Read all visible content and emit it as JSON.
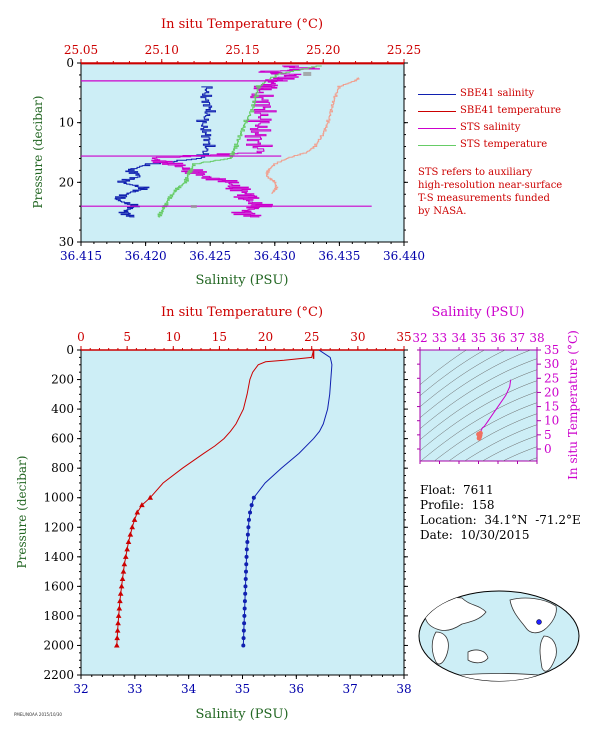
{
  "colors": {
    "panel_bg": "#cdeef6",
    "red": "#cc0000",
    "blue": "#1020b0",
    "magenta": "#cc00cc",
    "salmon": "#f0a090",
    "green": "#66cc66",
    "ylabel_green": "#226622",
    "tick_blue": "#0000aa"
  },
  "chart_data": [
    {
      "name": "top-profile",
      "type": "line",
      "title_top": "In situ Temperature (°C)",
      "xlabel": "Salinity (PSU)",
      "ylabel": "Pressure (decibar)",
      "x_salinity": {
        "range": [
          36.415,
          36.44
        ],
        "ticks": [
          "36.415",
          "36.420",
          "36.425",
          "36.430",
          "36.435",
          "36.440"
        ]
      },
      "x_temperature": {
        "range": [
          25.05,
          25.25
        ],
        "ticks": [
          "25.05",
          "25.10",
          "25.15",
          "25.20",
          "25.25"
        ]
      },
      "y": {
        "range": [
          0,
          30
        ],
        "ticks": [
          "0",
          "10",
          "20",
          "30"
        ],
        "inverted": true
      },
      "legend": [
        {
          "label": "SBE41 salinity",
          "color": "#1020b0"
        },
        {
          "label": "SBE41 temperature",
          "color": "#cc0000"
        },
        {
          "label": "STS salinity",
          "color": "#cc00cc"
        },
        {
          "label": "STS temperature",
          "color": "#66cc66"
        }
      ],
      "note": "STS refers to auxiliary\nhigh-resolution near-surface\nT-S measurements funded\nby NASA.",
      "series": [
        {
          "name": "SBE41 salinity",
          "color": "#1020b0",
          "p": [
            4,
            6,
            8,
            10,
            12,
            14,
            16,
            17,
            18,
            19,
            20,
            21,
            22,
            23,
            24,
            25,
            26
          ],
          "s": [
            36.4248,
            36.4246,
            36.425,
            36.4244,
            36.4247,
            36.4249,
            36.4243,
            36.4203,
            36.4187,
            36.4196,
            36.418,
            36.42,
            36.4185,
            36.4178,
            36.4192,
            36.4183,
            36.419
          ]
        },
        {
          "name": "STS salinity",
          "color": "#cc00cc",
          "p": [
            0.5,
            1,
            1.5,
            2,
            3,
            4,
            5,
            7,
            9,
            11,
            13,
            15,
            16,
            17,
            18,
            19,
            20,
            21,
            22,
            23,
            24,
            25,
            26
          ],
          "s": [
            36.4305,
            36.433,
            36.429,
            36.4315,
            36.43,
            36.4295,
            36.4287,
            36.4292,
            36.429,
            36.4288,
            36.4285,
            36.429,
            36.4205,
            36.422,
            36.4235,
            36.4245,
            36.4265,
            36.427,
            36.428,
            36.4278,
            36.429,
            36.4275,
            36.4285
          ]
        },
        {
          "name": "STS temperature",
          "color": "#66cc66",
          "p": [
            0.5,
            2,
            4,
            6,
            8,
            10,
            12,
            14,
            15,
            16,
            17,
            18,
            19,
            20,
            21,
            22,
            23,
            24,
            25,
            26
          ],
          "t": [
            25.199,
            25.172,
            25.16,
            25.158,
            25.156,
            25.152,
            25.149,
            25.146,
            25.144,
            25.143,
            25.12,
            25.118,
            25.116,
            25.115,
            25.11,
            25.107,
            25.104,
            25.102,
            25.1,
            25.098
          ]
        },
        {
          "name": "SBE41 temperature",
          "color": "#f0a090",
          "p": [
            2.5,
            3,
            4,
            6,
            8,
            10,
            12,
            14,
            15,
            16,
            17,
            18,
            19,
            20,
            21,
            22
          ],
          "t": [
            25.222,
            25.22,
            25.21,
            25.207,
            25.205,
            25.203,
            25.2,
            25.195,
            25.19,
            25.178,
            25.17,
            25.166,
            25.165,
            25.17,
            25.171,
            25.168
          ]
        }
      ]
    },
    {
      "name": "main-profile",
      "type": "line",
      "title_top": "In situ Temperature (°C)",
      "xlabel": "Salinity (PSU)",
      "ylabel": "Pressure (decibar)",
      "x_salinity": {
        "range": [
          32,
          38
        ],
        "ticks": [
          "32",
          "33",
          "34",
          "35",
          "36",
          "37",
          "38"
        ]
      },
      "x_temperature": {
        "range": [
          0,
          35
        ],
        "ticks": [
          "0",
          "5",
          "10",
          "15",
          "20",
          "25",
          "30",
          "35"
        ]
      },
      "y": {
        "range": [
          0,
          2200
        ],
        "ticks": [
          "0",
          "200",
          "400",
          "600",
          "800",
          "1000",
          "1200",
          "1400",
          "1600",
          "1800",
          "2000",
          "2200"
        ],
        "inverted": true
      },
      "temperature": {
        "color": "#cc0000",
        "p": [
          0,
          50,
          70,
          80,
          100,
          150,
          200,
          300,
          400,
          500,
          550,
          600,
          650,
          700,
          800,
          900,
          1000
        ],
        "v": [
          25.2,
          25.0,
          22.0,
          20.0,
          19.2,
          18.6,
          18.3,
          18.0,
          17.6,
          16.8,
          16.2,
          15.5,
          14.5,
          13.3,
          11.0,
          8.9,
          7.5
        ],
        "marker_p": [
          1000,
          1050,
          1100,
          1150,
          1200,
          1250,
          1300,
          1350,
          1400,
          1450,
          1500,
          1550,
          1600,
          1650,
          1700,
          1750,
          1800,
          1850,
          1900,
          1950,
          2000
        ],
        "marker_v": [
          7.5,
          6.6,
          6.1,
          5.8,
          5.55,
          5.35,
          5.15,
          5.0,
          4.85,
          4.7,
          4.6,
          4.5,
          4.4,
          4.3,
          4.22,
          4.15,
          4.08,
          4.02,
          3.97,
          3.92,
          3.88
        ]
      },
      "salinity": {
        "color": "#1020b0",
        "p": [
          0,
          50,
          80,
          100,
          200,
          300,
          400,
          500,
          550,
          600,
          700,
          800,
          900,
          1000
        ],
        "v": [
          36.42,
          36.63,
          36.65,
          36.66,
          36.64,
          36.62,
          36.58,
          36.5,
          36.43,
          36.32,
          36.05,
          35.72,
          35.42,
          35.21
        ],
        "marker_p": [
          1000,
          1050,
          1100,
          1150,
          1200,
          1250,
          1300,
          1350,
          1400,
          1450,
          1500,
          1550,
          1600,
          1650,
          1700,
          1750,
          1800,
          1850,
          1900,
          1950,
          2000
        ],
        "marker_v": [
          35.21,
          35.17,
          35.14,
          35.12,
          35.11,
          35.1,
          35.09,
          35.08,
          35.075,
          35.07,
          35.065,
          35.06,
          35.055,
          35.05,
          35.045,
          35.04,
          35.035,
          35.03,
          35.025,
          35.02,
          35.015
        ]
      }
    },
    {
      "name": "ts-inset",
      "type": "scatter",
      "title_top": "Salinity (PSU)",
      "ylabel_right": "In situ Temperature (°C)",
      "x": {
        "range": [
          32,
          38
        ],
        "ticks": [
          "32",
          "33",
          "34",
          "35",
          "36",
          "37",
          "38"
        ]
      },
      "y": {
        "range": [
          -5,
          35
        ],
        "ticks": [
          "0",
          "5",
          "10",
          "15",
          "20",
          "25",
          "30",
          "35"
        ]
      },
      "curve": {
        "color": "#cc00cc",
        "s": [
          36.65,
          36.6,
          36.4,
          36.1,
          35.8,
          35.5,
          35.3,
          35.2,
          35.1,
          35.05,
          35.0
        ],
        "t": [
          24.5,
          22,
          19,
          16,
          13,
          10,
          8,
          7.5,
          6,
          5,
          4
        ]
      },
      "markers": {
        "color": "#f07060",
        "s": [
          35.05,
          35.08,
          35.0,
          35.1,
          35.03,
          35.06
        ],
        "t": [
          4.2,
          4.8,
          5.2,
          5.6,
          3.8,
          4.5
        ]
      }
    }
  ],
  "float_info": {
    "float": "Float:  7611",
    "profile": "Profile:  158",
    "location": "Location:  34.1°N  -71.2°E",
    "date": "Date:  10/30/2015"
  },
  "map": {
    "marker_color": "#2020ff"
  },
  "credit": "PMEL/NOAA  2015/10/30"
}
